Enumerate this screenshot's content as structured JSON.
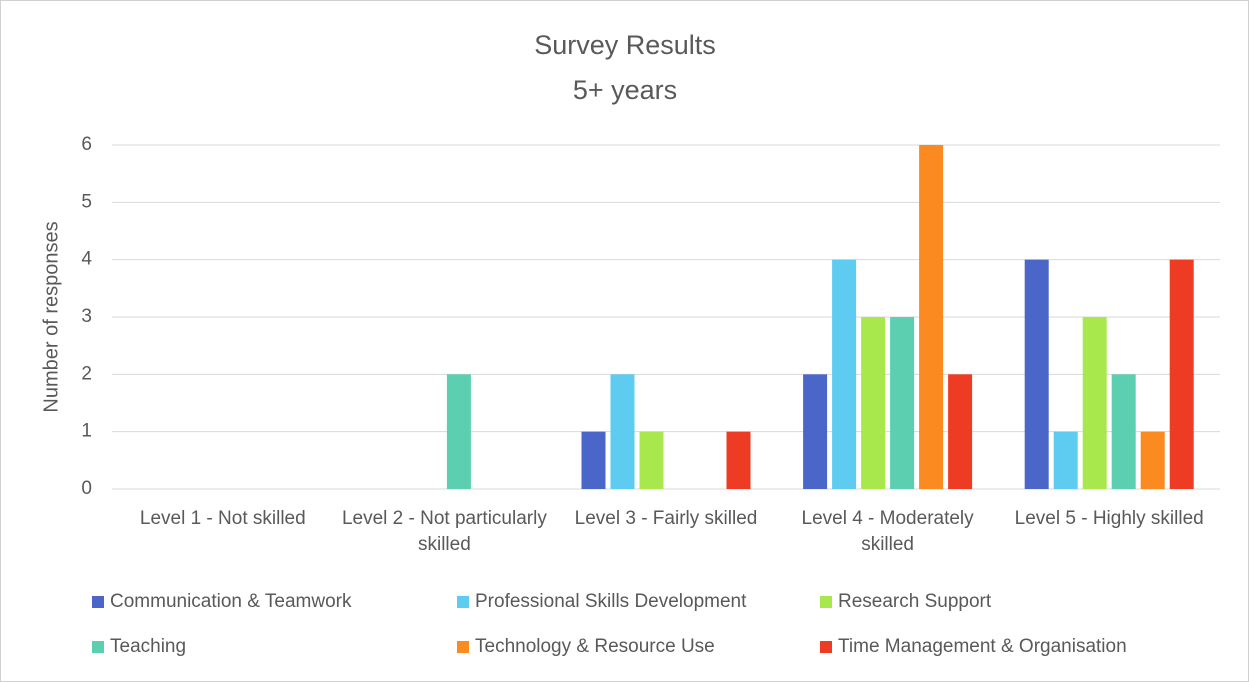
{
  "chart_data": {
    "type": "bar",
    "title": "Survey Results",
    "subtitle": "5+ years",
    "y_label": "Number of responses",
    "categories": [
      "Level 1 - Not skilled",
      "Level 2 - Not particularly skilled",
      "Level 3 - Fairly skilled",
      "Level 4 - Moderately skilled",
      "Level 5 - Highly skilled"
    ],
    "series": [
      {
        "name": "Communication & Teamwork",
        "color": "#4a66c8",
        "values": [
          0,
          0,
          1,
          2,
          4
        ]
      },
      {
        "name": "Professional Skills Development",
        "color": "#5ecbf0",
        "values": [
          0,
          0,
          2,
          4,
          1
        ]
      },
      {
        "name": "Research Support",
        "color": "#a8e84c",
        "values": [
          0,
          0,
          1,
          3,
          3
        ]
      },
      {
        "name": "Teaching",
        "color": "#5ccfb0",
        "values": [
          0,
          2,
          0,
          3,
          2
        ]
      },
      {
        "name": "Technology & Resource Use",
        "color": "#fb8a20",
        "values": [
          0,
          0,
          0,
          6,
          1
        ]
      },
      {
        "name": "Time Management & Organisation",
        "color": "#ee3b24",
        "values": [
          0,
          0,
          1,
          2,
          4
        ]
      }
    ],
    "ylim": [
      0,
      6
    ],
    "yticks": [
      0,
      1,
      2,
      3,
      4,
      5,
      6
    ],
    "grid": true,
    "legend": "bottom"
  }
}
